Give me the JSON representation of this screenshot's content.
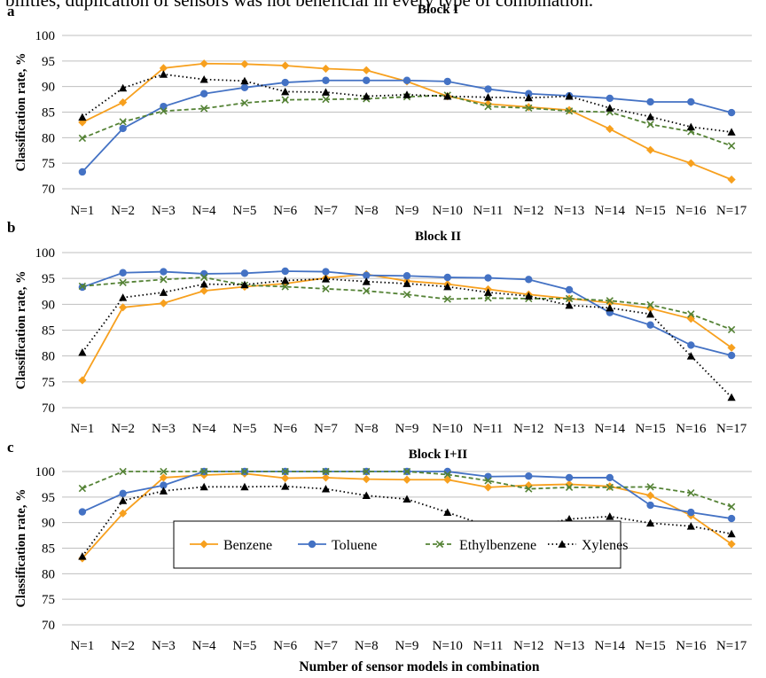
{
  "intro_text": "bilities, duplication of sensors was not beneficial in every type of combination.",
  "x_axis_label": "Number of sensor models in combination",
  "legend": {
    "items": [
      {
        "key": "benzene",
        "label": "Benzene"
      },
      {
        "key": "toluene",
        "label": "Toluene"
      },
      {
        "key": "ethylbenzene",
        "label": "Ethylbenzene"
      },
      {
        "key": "xylenes",
        "label": "Xylenes"
      }
    ]
  },
  "colors": {
    "benzene": "#F7A01E",
    "toluene": "#4472C4",
    "ethylbenzene": "#548235",
    "xylenes": "#000000",
    "grid": "#BFBFBF"
  },
  "chart_data": [
    {
      "type": "line",
      "panel_letter": "a",
      "title": "Block I",
      "ylabel": "Classification rate, %",
      "ylim": [
        70,
        100
      ],
      "yticks": [
        70,
        75,
        80,
        85,
        90,
        95,
        100
      ],
      "grid": true,
      "categories": [
        "N=1",
        "N=2",
        "N=3",
        "N=4",
        "N=5",
        "N=6",
        "N=7",
        "N=8",
        "N=9",
        "N=10",
        "N=11",
        "N=12",
        "N=13",
        "N=14",
        "N=15",
        "N=16",
        "N=17"
      ],
      "series": [
        {
          "name": "Benzene",
          "key": "benzene",
          "values": [
            83.0,
            86.9,
            93.6,
            94.5,
            94.4,
            94.1,
            93.5,
            93.2,
            91.0,
            88.1,
            86.6,
            86.0,
            85.4,
            81.7,
            77.6,
            75.0,
            71.8
          ]
        },
        {
          "name": "Toluene",
          "key": "toluene",
          "values": [
            73.3,
            81.8,
            86.1,
            88.6,
            89.8,
            90.8,
            91.2,
            91.2,
            91.2,
            91.0,
            89.5,
            88.6,
            88.2,
            87.7,
            87.0,
            87.0,
            84.9
          ]
        },
        {
          "name": "Ethylbenzene",
          "key": "ethylbenzene",
          "values": [
            79.9,
            83.1,
            85.2,
            85.7,
            86.8,
            87.4,
            87.5,
            87.6,
            88.0,
            88.3,
            86.1,
            85.8,
            85.2,
            85.0,
            82.6,
            81.2,
            78.4
          ]
        },
        {
          "name": "Xylenes",
          "key": "xylenes",
          "values": [
            84.0,
            89.7,
            92.4,
            91.4,
            91.1,
            89.0,
            88.9,
            88.1,
            88.4,
            88.1,
            87.9,
            87.8,
            88.1,
            85.8,
            84.1,
            82.1,
            81.1
          ]
        }
      ]
    },
    {
      "type": "line",
      "panel_letter": "b",
      "title": "Block II",
      "ylabel": "Classification rate, %",
      "ylim": [
        70,
        100
      ],
      "yticks": [
        70,
        75,
        80,
        85,
        90,
        95,
        100
      ],
      "grid": true,
      "categories": [
        "N=1",
        "N=2",
        "N=3",
        "N=4",
        "N=5",
        "N=6",
        "N=7",
        "N=8",
        "N=9",
        "N=10",
        "N=11",
        "N=12",
        "N=13",
        "N=14",
        "N=15",
        "N=16",
        "N=17"
      ],
      "series": [
        {
          "name": "Benzene",
          "key": "benzene",
          "values": [
            75.3,
            89.4,
            90.2,
            92.6,
            93.4,
            94.0,
            95.1,
            95.8,
            94.5,
            93.9,
            92.9,
            91.9,
            91.1,
            90.3,
            89.2,
            87.2,
            81.6
          ]
        },
        {
          "name": "Toluene",
          "key": "toluene",
          "values": [
            93.3,
            96.1,
            96.3,
            95.9,
            96.0,
            96.4,
            96.3,
            95.6,
            95.5,
            95.2,
            95.1,
            94.8,
            92.8,
            88.4,
            86.0,
            82.1,
            80.1
          ]
        },
        {
          "name": "Ethylbenzene",
          "key": "ethylbenzene",
          "values": [
            93.5,
            94.2,
            94.8,
            95.2,
            93.7,
            93.4,
            93.0,
            92.6,
            91.9,
            91.0,
            91.2,
            91.1,
            91.1,
            90.7,
            89.9,
            88.1,
            85.1
          ]
        },
        {
          "name": "Xylenes",
          "key": "xylenes",
          "values": [
            80.7,
            91.3,
            92.3,
            93.9,
            93.8,
            94.6,
            94.9,
            94.4,
            94.0,
            93.4,
            92.3,
            91.6,
            89.8,
            89.3,
            88.1,
            80.0,
            72.0
          ]
        }
      ]
    },
    {
      "type": "line",
      "panel_letter": "c",
      "title": "Block I+II",
      "ylabel": "Classification rate, %",
      "ylim": [
        70,
        100
      ],
      "yticks": [
        70,
        75,
        80,
        85,
        90,
        95,
        100
      ],
      "grid": true,
      "categories": [
        "N=1",
        "N=2",
        "N=3",
        "N=4",
        "N=5",
        "N=6",
        "N=7",
        "N=8",
        "N=9",
        "N=10",
        "N=11",
        "N=12",
        "N=13",
        "N=14",
        "N=15",
        "N=16",
        "N=17"
      ],
      "series": [
        {
          "name": "Benzene",
          "key": "benzene",
          "values": [
            83.0,
            91.8,
            98.8,
            99.3,
            99.6,
            98.7,
            98.8,
            98.5,
            98.4,
            98.4,
            96.9,
            97.3,
            97.5,
            97.1,
            95.3,
            91.4,
            85.8
          ]
        },
        {
          "name": "Toluene",
          "key": "toluene",
          "values": [
            92.1,
            95.7,
            97.3,
            100.0,
            100.0,
            100.0,
            100.0,
            100.0,
            100.0,
            100.0,
            99.0,
            99.1,
            98.8,
            98.8,
            93.4,
            92.0,
            90.8
          ]
        },
        {
          "name": "Ethylbenzene",
          "key": "ethylbenzene",
          "values": [
            96.7,
            100.0,
            100.0,
            100.0,
            100.0,
            100.0,
            100.0,
            100.0,
            100.0,
            99.4,
            98.2,
            96.6,
            96.9,
            96.9,
            97.0,
            95.8,
            93.1
          ]
        },
        {
          "name": "Xylenes",
          "key": "xylenes",
          "values": [
            83.4,
            94.3,
            96.2,
            97.0,
            97.0,
            97.1,
            96.6,
            95.3,
            94.6,
            92.0,
            89.3,
            89.0,
            90.7,
            91.2,
            89.9,
            89.3,
            87.8
          ]
        }
      ]
    }
  ]
}
